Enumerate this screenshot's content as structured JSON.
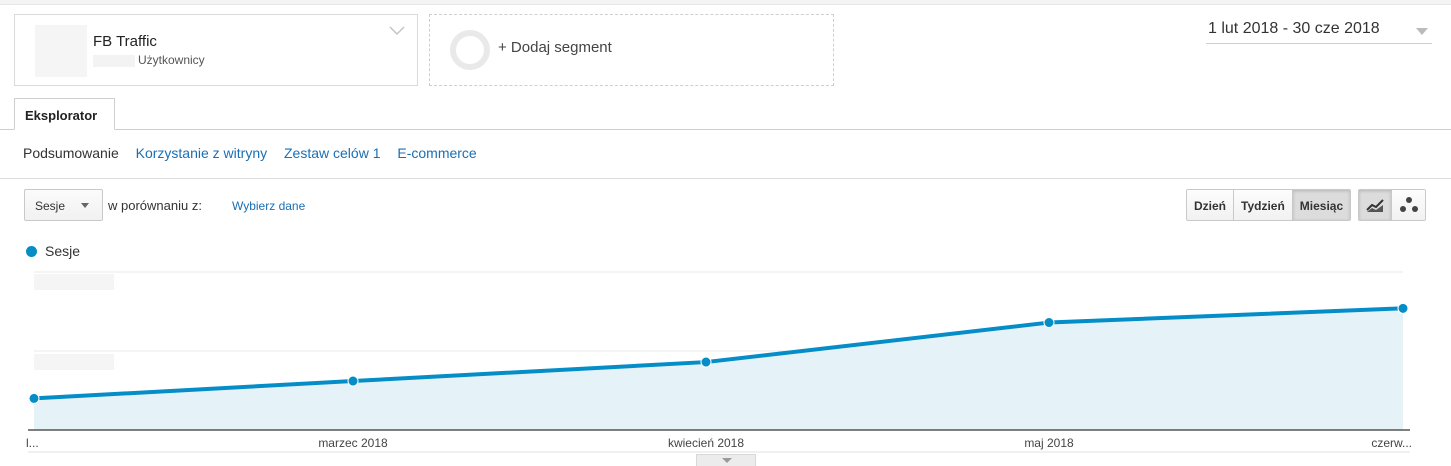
{
  "segment": {
    "title": "FB Traffic",
    "subtitle": "Użytkownicy"
  },
  "add_segment": {
    "label": "+ Dodaj segment"
  },
  "date_range": {
    "label": "1 lut 2018 - 30 cze 2018"
  },
  "tabs": {
    "explorer": "Eksplorator"
  },
  "subnav": {
    "items": [
      "Podsumowanie",
      "Korzystanie z witryny",
      "Zestaw celów 1",
      "E-commerce"
    ]
  },
  "controls": {
    "metric": "Sesje",
    "compare_label": "w porównaniu z:",
    "compare_link": "Wybierz dane",
    "granularity": [
      "Dzień",
      "Tydzień",
      "Miesiąc"
    ],
    "granularity_selected": "Miesiąc",
    "chart_types": [
      "line-chart-icon",
      "motion-chart-icon"
    ]
  },
  "colors": {
    "series": "#058dc7",
    "area_fill": "#e5f3f9",
    "link": "#1a6fb4"
  },
  "chart_data": {
    "type": "area",
    "categories": [
      "l...",
      "marzec 2018",
      "kwiecień 2018",
      "maj 2018",
      "czerw..."
    ],
    "series": [
      {
        "name": "Sesje",
        "values": [
          0.2,
          0.31,
          0.43,
          0.68,
          0.77
        ]
      }
    ],
    "ylim": [
      0,
      1
    ],
    "grid": true,
    "legend": "top-left",
    "title": "",
    "xlabel": "",
    "ylabel": ""
  }
}
